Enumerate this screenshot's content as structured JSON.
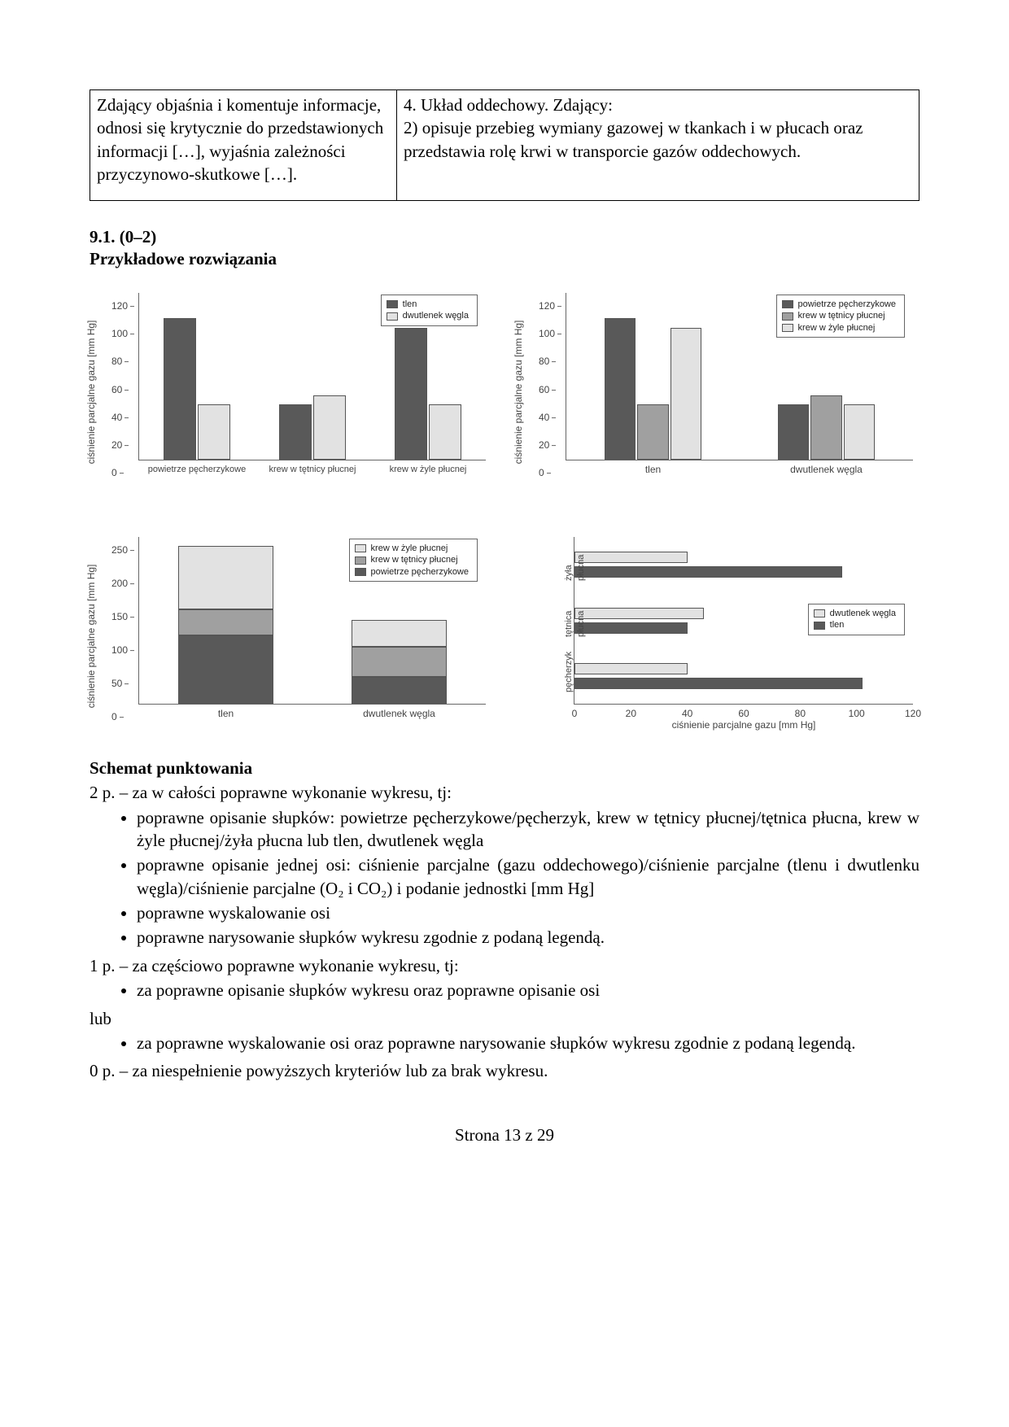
{
  "colors": {
    "dark": "#595959",
    "mid": "#a0a0a0",
    "light": "#e2e2e2",
    "axis": "#666666",
    "text": "#444444"
  },
  "table": {
    "left": "Zdający objaśnia i komentuje informacje, odnosi się krytycznie do przedstawionych informacji […], wyjaśnia zależności przyczynowo-skutkowe […].",
    "right": "4. Układ oddechowy. Zdający:\n2) opisuje przebieg wymiany gazowej w tkankach i w płucach oraz przedstawia rolę krwi w transporcie gazów oddechowych."
  },
  "heading": {
    "num": "9.1. (0–2)",
    "title": "Przykładowe rozwiązania"
  },
  "axis_label": "ciśnienie parcjalne gazu [mm Hg]",
  "chart1": {
    "type": "grouped-bar",
    "ymax": 120,
    "ytick": 20,
    "legend": [
      {
        "label": "tlen",
        "color": "#595959"
      },
      {
        "label": "dwutlenek węgla",
        "color": "#e2e2e2"
      }
    ],
    "categories": [
      "powietrze pęcherzykowe",
      "krew w tętnicy płucnej",
      "krew w żyle płucnej"
    ],
    "series": [
      {
        "color": "#595959",
        "values": [
          102,
          40,
          95
        ]
      },
      {
        "color": "#e2e2e2",
        "values": [
          40,
          46,
          40
        ]
      }
    ]
  },
  "chart2": {
    "type": "grouped-bar",
    "ymax": 120,
    "ytick": 20,
    "legend": [
      {
        "label": "powietrze pęcherzykowe",
        "color": "#595959"
      },
      {
        "label": "krew w tętnicy płucnej",
        "color": "#a0a0a0"
      },
      {
        "label": "krew w żyle płucnej",
        "color": "#e2e2e2"
      }
    ],
    "categories": [
      "tlen",
      "dwutlenek węgla"
    ],
    "series": [
      {
        "color": "#595959",
        "values": [
          102,
          40
        ]
      },
      {
        "color": "#a0a0a0",
        "values": [
          40,
          46
        ]
      },
      {
        "color": "#e2e2e2",
        "values": [
          95,
          40
        ]
      }
    ]
  },
  "chart3": {
    "type": "stacked-bar",
    "ymax": 250,
    "ytick": 50,
    "legend": [
      {
        "label": "krew w żyle płucnej",
        "color": "#e2e2e2"
      },
      {
        "label": "krew w tętnicy płucnej",
        "color": "#a0a0a0"
      },
      {
        "label": "powietrze pęcherzykowe",
        "color": "#595959"
      }
    ],
    "categories": [
      "tlen",
      "dwutlenek węgla"
    ],
    "stacks": [
      [
        {
          "v": 102,
          "c": "#595959"
        },
        {
          "v": 40,
          "c": "#a0a0a0"
        },
        {
          "v": 95,
          "c": "#e2e2e2"
        }
      ],
      [
        {
          "v": 40,
          "c": "#595959"
        },
        {
          "v": 46,
          "c": "#a0a0a0"
        },
        {
          "v": 40,
          "c": "#e2e2e2"
        }
      ]
    ]
  },
  "chart4": {
    "type": "horizontal-grouped",
    "xmax": 120,
    "xtick": 20,
    "legend": [
      {
        "label": "dwutlenek węgla",
        "color": "#e2e2e2"
      },
      {
        "label": "tlen",
        "color": "#595959"
      }
    ],
    "categories": [
      "żyła\npłucna",
      "tętnica\npłucna",
      "pęcherzyk"
    ],
    "series": [
      {
        "color": "#e2e2e2",
        "values": [
          40,
          46,
          40
        ]
      },
      {
        "color": "#595959",
        "values": [
          95,
          40,
          102
        ]
      }
    ]
  },
  "scoring": {
    "title": "Schemat punktowania",
    "p2_intro": "2 p. – za w całości poprawne wykonanie wykresu, tj:",
    "p2_items": [
      "poprawne opisanie słupków: powietrze pęcherzykowe/pęcherzyk, krew w tętnicy płucnej/tętnica płucna, krew w żyle płucnej/żyła płucna lub tlen, dwutlenek węgla",
      "poprawne opisanie jednej osi: ciśnienie parcjalne (gazu oddechowego)/ciśnienie parcjalne (tlenu i dwutlenku węgla)/ciśnienie parcjalne (O₂ i CO₂) i podanie jednostki [mm Hg]",
      "poprawne wyskalowanie osi",
      "poprawne narysowanie słupków wykresu zgodnie z podaną legendą."
    ],
    "p1_intro": "1 p. – za częściowo poprawne wykonanie wykresu, tj:",
    "p1_a": "za poprawne opisanie słupków wykresu oraz poprawne opisanie osi",
    "or": "lub",
    "p1_b": "za poprawne wyskalowanie osi oraz poprawne narysowanie słupków wykresu zgodnie z podaną legendą.",
    "p0": "0 p. – za niespełnienie powyższych kryteriów lub za brak wykresu."
  },
  "footer": "Strona 13 z 29"
}
